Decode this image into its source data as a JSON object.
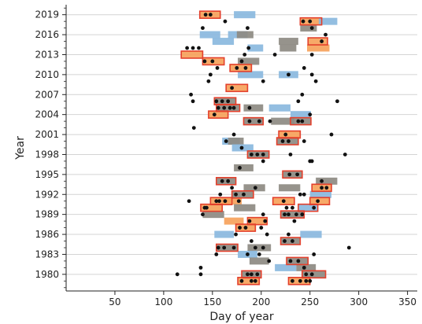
{
  "chart_data": {
    "type": "scatter",
    "title": "",
    "xlabel": "Day of year",
    "ylabel": "Year",
    "xlim": [
      0,
      360
    ],
    "ylim": [
      1977.5,
      2020.5
    ],
    "xticks": [
      50,
      100,
      150,
      200,
      250,
      300,
      350
    ],
    "yticks": [
      1980,
      1983,
      1986,
      1989,
      1992,
      1995,
      1998,
      2001,
      2004,
      2007,
      2010,
      2013,
      2016,
      2019
    ],
    "grid": "horizontal",
    "legend": "none",
    "colors": {
      "blue": "#8ab9de",
      "gray": "#8d8a82",
      "orange": "#f6a25b",
      "red_outline": "#e3402c",
      "dot": "#111111",
      "grid": "#d4d4d4"
    },
    "bars": [
      {
        "year": 2019,
        "start": 137,
        "end": 158,
        "color": "orange"
      },
      {
        "year": 2019,
        "start": 172,
        "end": 194,
        "color": "blue"
      },
      {
        "year": 2018,
        "start": 240,
        "end": 262,
        "color": "orange"
      },
      {
        "year": 2018,
        "start": 259,
        "end": 278,
        "color": "blue"
      },
      {
        "year": 2017,
        "start": 240,
        "end": 257,
        "color": "gray"
      },
      {
        "year": 2016,
        "start": 137,
        "end": 158,
        "color": "blue"
      },
      {
        "year": 2016,
        "start": 166,
        "end": 186,
        "color": "blue"
      },
      {
        "year": 2016,
        "start": 175,
        "end": 192,
        "color": "gray"
      },
      {
        "year": 2015,
        "start": 150,
        "end": 172,
        "color": "blue"
      },
      {
        "year": 2015,
        "start": 218,
        "end": 238,
        "color": "gray"
      },
      {
        "year": 2015,
        "start": 248,
        "end": 268,
        "color": "orange"
      },
      {
        "year": 2014,
        "start": 186,
        "end": 202,
        "color": "blue"
      },
      {
        "year": 2014,
        "start": 219,
        "end": 236,
        "color": "gray"
      },
      {
        "year": 2014,
        "start": 247,
        "end": 270,
        "color": "orange"
      },
      {
        "year": 2013,
        "start": 118,
        "end": 140,
        "color": "orange"
      },
      {
        "year": 2012,
        "start": 140,
        "end": 162,
        "color": "orange"
      },
      {
        "year": 2012,
        "start": 176,
        "end": 198,
        "color": "gray"
      },
      {
        "year": 2011,
        "start": 168,
        "end": 190,
        "color": "orange"
      },
      {
        "year": 2010,
        "start": 176,
        "end": 202,
        "color": "blue"
      },
      {
        "year": 2010,
        "start": 218,
        "end": 238,
        "color": "blue"
      },
      {
        "year": 2008,
        "start": 164,
        "end": 186,
        "color": "orange"
      },
      {
        "year": 2006,
        "start": 152,
        "end": 174,
        "color": "gray"
      },
      {
        "year": 2005,
        "start": 154,
        "end": 178,
        "color": "gray"
      },
      {
        "year": 2005,
        "start": 182,
        "end": 202,
        "color": "gray"
      },
      {
        "year": 2005,
        "start": 208,
        "end": 230,
        "color": "blue"
      },
      {
        "year": 2004,
        "start": 146,
        "end": 166,
        "color": "orange"
      },
      {
        "year": 2004,
        "start": 230,
        "end": 251,
        "color": "blue"
      },
      {
        "year": 2003,
        "start": 182,
        "end": 202,
        "color": "gray"
      },
      {
        "year": 2003,
        "start": 210,
        "end": 234,
        "color": "gray"
      },
      {
        "year": 2003,
        "start": 230,
        "end": 251,
        "color": "gray"
      },
      {
        "year": 2001,
        "start": 218,
        "end": 240,
        "color": "orange"
      },
      {
        "year": 2000,
        "start": 160,
        "end": 178,
        "color": "blue"
      },
      {
        "year": 2000,
        "start": 166,
        "end": 182,
        "color": "gray"
      },
      {
        "year": 2000,
        "start": 216,
        "end": 238,
        "color": "gray"
      },
      {
        "year": 1999,
        "start": 170,
        "end": 192,
        "color": "blue"
      },
      {
        "year": 1998,
        "start": 186,
        "end": 208,
        "color": "gray"
      },
      {
        "year": 1996,
        "start": 172,
        "end": 192,
        "color": "gray"
      },
      {
        "year": 1995,
        "start": 222,
        "end": 242,
        "color": "gray"
      },
      {
        "year": 1994,
        "start": 154,
        "end": 174,
        "color": "gray"
      },
      {
        "year": 1994,
        "start": 256,
        "end": 278,
        "color": "gray"
      },
      {
        "year": 1993,
        "start": 182,
        "end": 204,
        "color": "gray"
      },
      {
        "year": 1993,
        "start": 218,
        "end": 240,
        "color": "gray"
      },
      {
        "year": 1993,
        "start": 252,
        "end": 272,
        "color": "orange"
      },
      {
        "year": 1992,
        "start": 170,
        "end": 192,
        "color": "gray"
      },
      {
        "year": 1992,
        "start": 250,
        "end": 272,
        "color": "blue"
      },
      {
        "year": 1991,
        "start": 148,
        "end": 170,
        "color": "orange"
      },
      {
        "year": 1991,
        "start": 160,
        "end": 180,
        "color": "orange"
      },
      {
        "year": 1991,
        "start": 212,
        "end": 234,
        "color": "orange"
      },
      {
        "year": 1991,
        "start": 250,
        "end": 270,
        "color": "orange"
      },
      {
        "year": 1990,
        "start": 138,
        "end": 160,
        "color": "orange"
      },
      {
        "year": 1990,
        "start": 172,
        "end": 194,
        "color": "gray"
      },
      {
        "year": 1990,
        "start": 238,
        "end": 258,
        "color": "blue"
      },
      {
        "year": 1989,
        "start": 140,
        "end": 162,
        "color": "gray"
      },
      {
        "year": 1989,
        "start": 220,
        "end": 244,
        "color": "gray"
      },
      {
        "year": 1988,
        "start": 162,
        "end": 182,
        "color": "orange"
      },
      {
        "year": 1988,
        "start": 186,
        "end": 206,
        "color": "orange"
      },
      {
        "year": 1987,
        "start": 174,
        "end": 194,
        "color": "orange"
      },
      {
        "year": 1986,
        "start": 152,
        "end": 172,
        "color": "blue"
      },
      {
        "year": 1986,
        "start": 240,
        "end": 262,
        "color": "blue"
      },
      {
        "year": 1985,
        "start": 220,
        "end": 240,
        "color": "gray"
      },
      {
        "year": 1984,
        "start": 154,
        "end": 176,
        "color": "gray"
      },
      {
        "year": 1984,
        "start": 186,
        "end": 210,
        "color": "gray"
      },
      {
        "year": 1983,
        "start": 176,
        "end": 196,
        "color": "blue"
      },
      {
        "year": 1982,
        "start": 188,
        "end": 208,
        "color": "gray"
      },
      {
        "year": 1982,
        "start": 226,
        "end": 248,
        "color": "gray"
      },
      {
        "year": 1981,
        "start": 214,
        "end": 236,
        "color": "blue"
      },
      {
        "year": 1981,
        "start": 236,
        "end": 256,
        "color": "gray"
      },
      {
        "year": 1980,
        "start": 180,
        "end": 200,
        "color": "gray"
      },
      {
        "year": 1980,
        "start": 242,
        "end": 266,
        "color": "gray"
      },
      {
        "year": 1979,
        "start": 176,
        "end": 198,
        "color": "orange"
      },
      {
        "year": 1979,
        "start": 228,
        "end": 250,
        "color": "orange"
      }
    ],
    "outlined": [
      {
        "year": 2019,
        "start": 137,
        "end": 158
      },
      {
        "year": 2018,
        "start": 240,
        "end": 262
      },
      {
        "year": 2015,
        "start": 248,
        "end": 268
      },
      {
        "year": 2013,
        "start": 118,
        "end": 140
      },
      {
        "year": 2012,
        "start": 140,
        "end": 162
      },
      {
        "year": 2011,
        "start": 168,
        "end": 190
      },
      {
        "year": 2008,
        "start": 164,
        "end": 186
      },
      {
        "year": 2006,
        "start": 152,
        "end": 174
      },
      {
        "year": 2005,
        "start": 154,
        "end": 178
      },
      {
        "year": 2004,
        "start": 146,
        "end": 166
      },
      {
        "year": 2003,
        "start": 182,
        "end": 202
      },
      {
        "year": 2003,
        "start": 230,
        "end": 251
      },
      {
        "year": 2001,
        "start": 218,
        "end": 240
      },
      {
        "year": 2000,
        "start": 216,
        "end": 238
      },
      {
        "year": 1998,
        "start": 186,
        "end": 208
      },
      {
        "year": 1995,
        "start": 222,
        "end": 242
      },
      {
        "year": 1994,
        "start": 154,
        "end": 174
      },
      {
        "year": 1993,
        "start": 252,
        "end": 272
      },
      {
        "year": 1992,
        "start": 170,
        "end": 192
      },
      {
        "year": 1991,
        "start": 148,
        "end": 170
      },
      {
        "year": 1991,
        "start": 212,
        "end": 234
      },
      {
        "year": 1991,
        "start": 250,
        "end": 270
      },
      {
        "year": 1990,
        "start": 138,
        "end": 160
      },
      {
        "year": 1990,
        "start": 238,
        "end": 258
      },
      {
        "year": 1989,
        "start": 220,
        "end": 244
      },
      {
        "year": 1988,
        "start": 186,
        "end": 206
      },
      {
        "year": 1987,
        "start": 174,
        "end": 194
      },
      {
        "year": 1985,
        "start": 220,
        "end": 240
      },
      {
        "year": 1984,
        "start": 154,
        "end": 176
      },
      {
        "year": 1982,
        "start": 226,
        "end": 248
      },
      {
        "year": 1980,
        "start": 180,
        "end": 200
      },
      {
        "year": 1980,
        "start": 242,
        "end": 266
      },
      {
        "year": 1979,
        "start": 176,
        "end": 198
      },
      {
        "year": 1979,
        "start": 228,
        "end": 250
      }
    ],
    "points": [
      [
        2019,
        143
      ],
      [
        2019,
        148
      ],
      [
        2018,
        163
      ],
      [
        2018,
        243
      ],
      [
        2018,
        250
      ],
      [
        2017,
        140
      ],
      [
        2017,
        186
      ],
      [
        2017,
        252
      ],
      [
        2016,
        266
      ],
      [
        2015,
        262
      ],
      [
        2014,
        124
      ],
      [
        2014,
        130
      ],
      [
        2014,
        136
      ],
      [
        2014,
        187
      ],
      [
        2013,
        183
      ],
      [
        2013,
        214
      ],
      [
        2013,
        252
      ],
      [
        2012,
        142
      ],
      [
        2012,
        150
      ],
      [
        2012,
        180
      ],
      [
        2011,
        184
      ],
      [
        2011,
        175
      ],
      [
        2011,
        155
      ],
      [
        2011,
        244
      ],
      [
        2010,
        148
      ],
      [
        2010,
        228
      ],
      [
        2010,
        252
      ],
      [
        2009,
        146
      ],
      [
        2009,
        256
      ],
      [
        2009,
        202
      ],
      [
        2008,
        170
      ],
      [
        2007,
        128
      ],
      [
        2007,
        242
      ],
      [
        2006,
        130
      ],
      [
        2006,
        278
      ],
      [
        2006,
        154
      ],
      [
        2006,
        160
      ],
      [
        2006,
        166
      ],
      [
        2006,
        238
      ],
      [
        2005,
        156
      ],
      [
        2005,
        162
      ],
      [
        2005,
        168
      ],
      [
        2005,
        172
      ],
      [
        2005,
        188
      ],
      [
        2004,
        152
      ],
      [
        2004,
        250
      ],
      [
        2003,
        188
      ],
      [
        2003,
        198
      ],
      [
        2003,
        209
      ],
      [
        2003,
        238
      ],
      [
        2003,
        242
      ],
      [
        2002,
        131
      ],
      [
        2001,
        172
      ],
      [
        2001,
        225
      ],
      [
        2001,
        272
      ],
      [
        2000,
        164
      ],
      [
        2000,
        222
      ],
      [
        2000,
        228
      ],
      [
        2000,
        244
      ],
      [
        1999,
        180
      ],
      [
        1998,
        190
      ],
      [
        1998,
        196
      ],
      [
        1998,
        202
      ],
      [
        1998,
        230
      ],
      [
        1998,
        286
      ],
      [
        1997,
        202
      ],
      [
        1997,
        250
      ],
      [
        1997,
        252
      ],
      [
        1996,
        178
      ],
      [
        1995,
        229
      ],
      [
        1995,
        237
      ],
      [
        1994,
        160
      ],
      [
        1994,
        166
      ],
      [
        1994,
        262
      ],
      [
        1993,
        170
      ],
      [
        1993,
        194
      ],
      [
        1993,
        262
      ],
      [
        1993,
        267
      ],
      [
        1992,
        174
      ],
      [
        1992,
        182
      ],
      [
        1992,
        158
      ],
      [
        1992,
        240
      ],
      [
        1992,
        244
      ],
      [
        1991,
        126
      ],
      [
        1991,
        154
      ],
      [
        1991,
        157
      ],
      [
        1991,
        163
      ],
      [
        1991,
        177
      ],
      [
        1991,
        223
      ],
      [
        1991,
        258
      ],
      [
        1990,
        142
      ],
      [
        1990,
        144
      ],
      [
        1990,
        226
      ],
      [
        1990,
        232
      ],
      [
        1990,
        254
      ],
      [
        1989,
        140
      ],
      [
        1989,
        202
      ],
      [
        1989,
        224
      ],
      [
        1989,
        228
      ],
      [
        1989,
        236
      ],
      [
        1989,
        242
      ],
      [
        1988,
        188
      ],
      [
        1988,
        204
      ],
      [
        1988,
        234
      ],
      [
        1987,
        178
      ],
      [
        1987,
        184
      ],
      [
        1987,
        200
      ],
      [
        1986,
        174
      ],
      [
        1986,
        206
      ],
      [
        1986,
        228
      ],
      [
        1985,
        224
      ],
      [
        1985,
        232
      ],
      [
        1985,
        190
      ],
      [
        1984,
        156
      ],
      [
        1984,
        162
      ],
      [
        1984,
        172
      ],
      [
        1984,
        194
      ],
      [
        1984,
        202
      ],
      [
        1984,
        290
      ],
      [
        1983,
        154
      ],
      [
        1983,
        186
      ],
      [
        1983,
        198
      ],
      [
        1983,
        254
      ],
      [
        1982,
        208
      ],
      [
        1982,
        230
      ],
      [
        1982,
        238
      ],
      [
        1981,
        138
      ],
      [
        1981,
        244
      ],
      [
        1980,
        114
      ],
      [
        1980,
        138
      ],
      [
        1980,
        186
      ],
      [
        1980,
        190
      ],
      [
        1980,
        196
      ],
      [
        1980,
        246
      ],
      [
        1980,
        252
      ],
      [
        1979,
        180
      ],
      [
        1979,
        190
      ],
      [
        1979,
        194
      ],
      [
        1979,
        232
      ],
      [
        1979,
        240
      ],
      [
        1979,
        246
      ],
      [
        1979,
        250
      ]
    ]
  }
}
